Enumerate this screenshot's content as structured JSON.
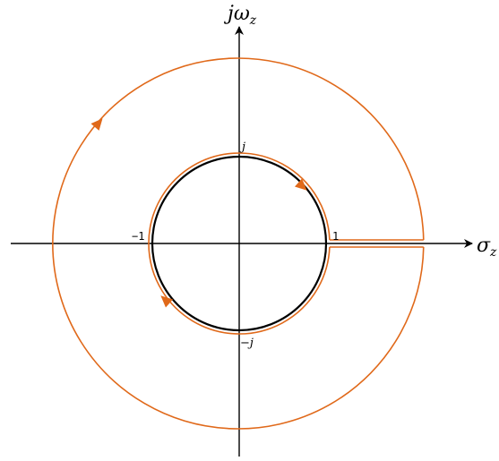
{
  "axes": {
    "vertical_label": "jω",
    "vertical_label_sub": "z",
    "horizontal_label": "σ",
    "horizontal_label_sub": "z"
  },
  "ticks": {
    "j": "j",
    "minus_one": "−1",
    "one": "1",
    "minus_j": "−j"
  },
  "colors": {
    "contour": "#E0691A",
    "unit_circle": "#000000",
    "axes": "#000000"
  }
}
